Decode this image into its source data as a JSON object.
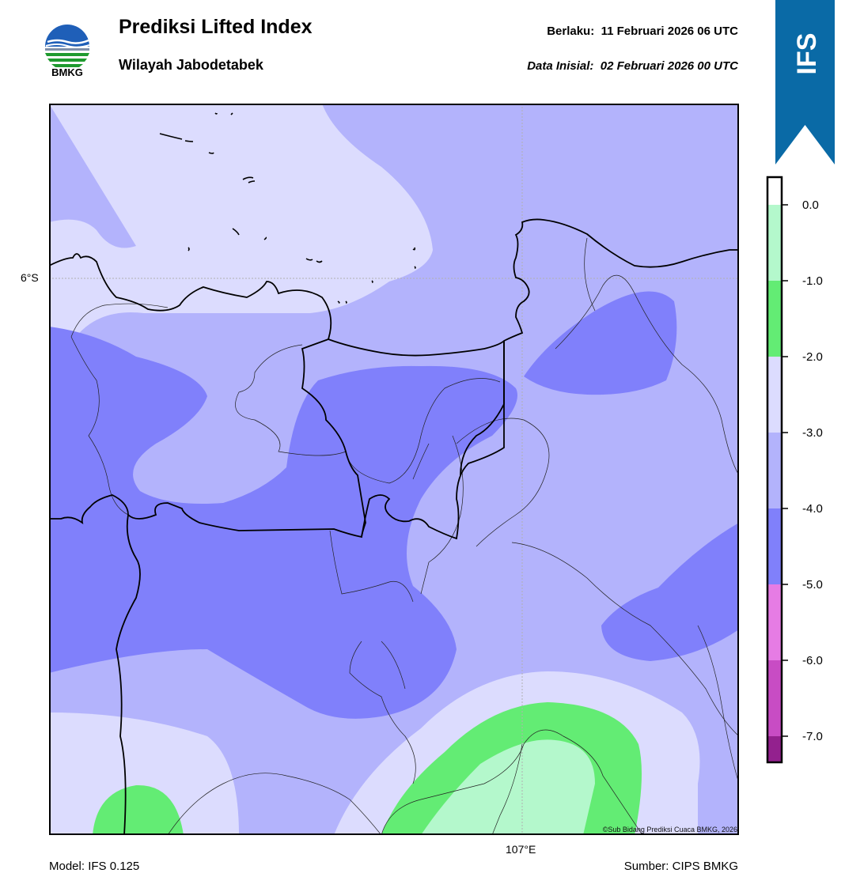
{
  "header": {
    "logo_text": "BMKG",
    "title": "Prediksi Lifted Index",
    "subtitle": "Wilayah Jabodetabek",
    "valid_label": "Berlaku:",
    "valid_value": "11 Februari 2026 06 UTC",
    "init_label": "Data Inisial:",
    "init_value": "02 Februari 2026 00 UTC",
    "badge_text": "IFS",
    "badge_color": "#0a6aa6"
  },
  "map": {
    "lat_label": "6°S",
    "lon_label": "107°E",
    "copyright": "©Sub Bidang Prediksi Cuaca BMKG, 2026"
  },
  "footer": {
    "model": "Model: IFS 0.125",
    "source": "Sumber: CIPS BMKG"
  },
  "colorbar": {
    "ticks": [
      "0.0",
      "-1.0",
      "-2.0",
      "-3.0",
      "-4.0",
      "-5.0",
      "-6.0",
      "-7.0"
    ],
    "bands": [
      {
        "range": "> 0",
        "color": "#ffffff"
      },
      {
        "range": "0 to -1",
        "color": "#b4f8cc"
      },
      {
        "range": "-1 to -2",
        "color": "#63ec74"
      },
      {
        "range": "-2 to -3",
        "color": "#dcdcfe"
      },
      {
        "range": "-3 to -4",
        "color": "#b3b3fc"
      },
      {
        "range": "-4 to -5",
        "color": "#8080fb"
      },
      {
        "range": "-5 to -6",
        "color": "#e67ce4"
      },
      {
        "range": "-6 to -7",
        "color": "#c84cc4"
      },
      {
        "range": "< -7",
        "color": "#93218e"
      }
    ]
  }
}
